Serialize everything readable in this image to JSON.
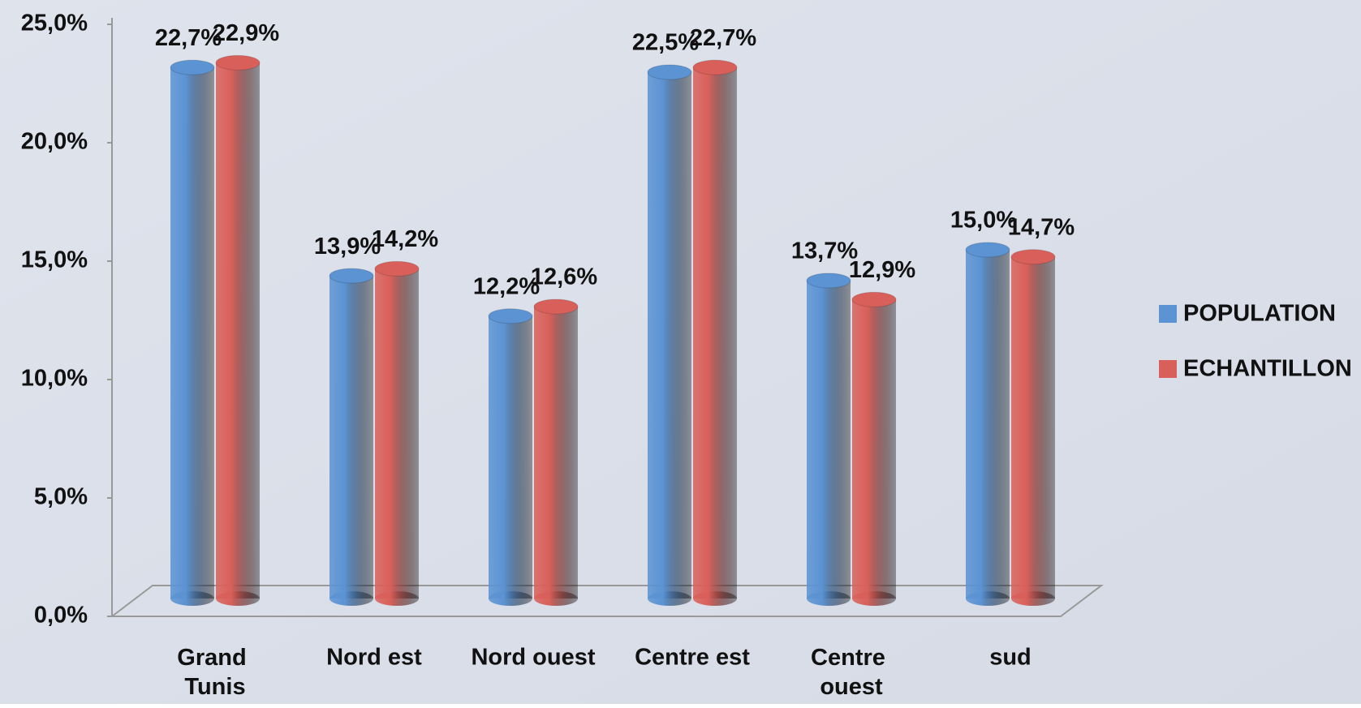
{
  "chart_data": {
    "type": "bar",
    "categories": [
      "Grand Tunis",
      "Nord est",
      "Nord ouest",
      "Centre est",
      "Centre ouest",
      "sud"
    ],
    "series": [
      {
        "name": "POPULATION",
        "color": "#5b93d3",
        "values": [
          22.7,
          13.9,
          12.2,
          22.5,
          13.7,
          15.0
        ],
        "value_labels": [
          "22,7%",
          "13,9%",
          "12,2%",
          "22,5%",
          "13,7%",
          "15,0%"
        ]
      },
      {
        "name": "ECHANTILLON",
        "color": "#d9605a",
        "values": [
          22.9,
          14.2,
          12.6,
          22.7,
          12.9,
          14.7
        ],
        "value_labels": [
          "22,9%",
          "14,2%",
          "12,6%",
          "22,7%",
          "12,9%",
          "14,7%"
        ]
      }
    ],
    "ylim": [
      0,
      25
    ],
    "yticks": [
      {
        "value": 0,
        "label": "0,0%"
      },
      {
        "value": 5,
        "label": "5,0%"
      },
      {
        "value": 10,
        "label": "10,0%"
      },
      {
        "value": 15,
        "label": "15,0%"
      },
      {
        "value": 20,
        "label": "20,0%"
      },
      {
        "value": 25,
        "label": "25,0%"
      }
    ],
    "legend": "right"
  }
}
